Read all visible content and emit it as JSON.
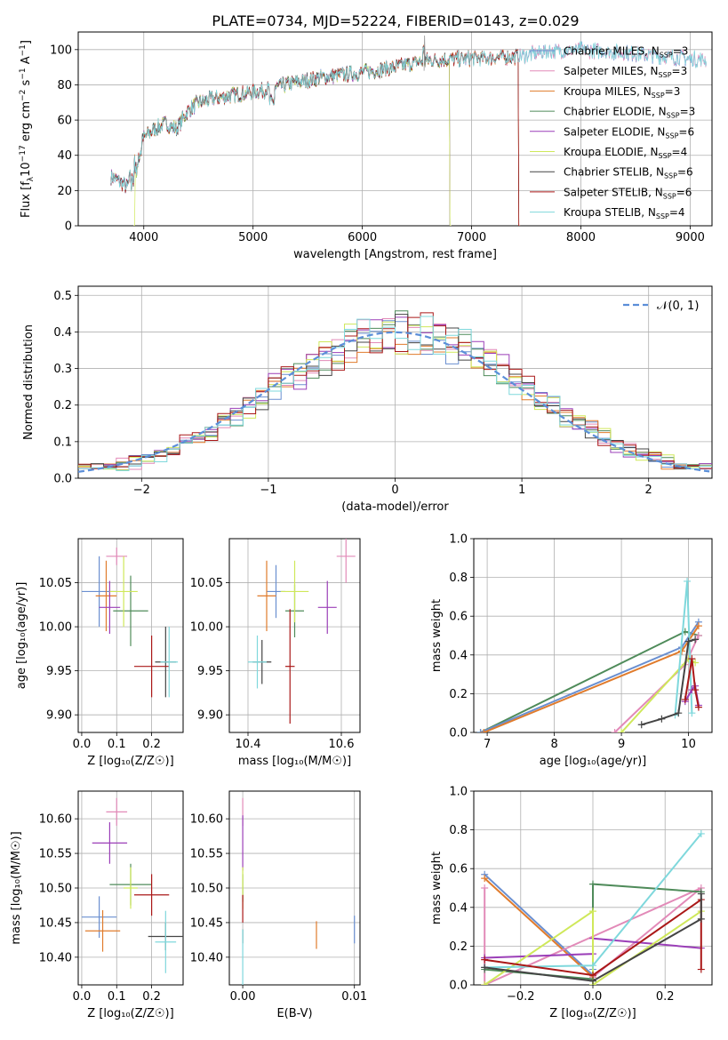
{
  "figure_title": "PLATE=0734, MJD=52224, FIBERID=0143, z=0.029",
  "colors": {
    "ChM": "#6a8fd0",
    "SaM": "#e28ab8",
    "KrM": "#e07b2c",
    "ChE": "#4f8b5a",
    "SaE": "#9b3fb8",
    "KrE": "#cfe85a",
    "ChS": "#444444",
    "SaS": "#aa1818",
    "KrS": "#7fd8dc"
  },
  "chart_data": [
    {
      "id": "spectrum",
      "type": "line",
      "xlabel": "wavelength [Angstrom, rest frame]",
      "ylabel_pre": "Flux [f",
      "ylabel_sub1": "λ",
      "ylabel_mid": "10",
      "ylabel_sup1": "−17",
      "ylabel_post": " erg cm",
      "ylabel_sup2": "−2",
      "ylabel_mid2": " s",
      "ylabel_sup3": "−1",
      "ylabel_end": " A",
      "ylabel_sup4": "−1",
      "ylabel_close": "]",
      "xlim": [
        3400,
        9200
      ],
      "ylim": [
        0,
        110
      ],
      "xticks": [
        4000,
        5000,
        6000,
        7000,
        8000,
        9000
      ],
      "yticks": [
        0,
        20,
        40,
        60,
        80,
        100
      ],
      "spectrum_anchor": [
        [
          3700,
          28
        ],
        [
          3780,
          25
        ],
        [
          3850,
          22
        ],
        [
          3920,
          38
        ],
        [
          4000,
          50
        ],
        [
          4100,
          55
        ],
        [
          4200,
          58
        ],
        [
          4300,
          55
        ],
        [
          4400,
          65
        ],
        [
          4500,
          70
        ],
        [
          4700,
          73
        ],
        [
          4900,
          75
        ],
        [
          5100,
          77
        ],
        [
          5300,
          80
        ],
        [
          5600,
          84
        ],
        [
          6000,
          87
        ],
        [
          6300,
          90
        ],
        [
          6600,
          94
        ],
        [
          7000,
          95
        ],
        [
          7400,
          96
        ],
        [
          7700,
          99
        ],
        [
          8000,
          100
        ],
        [
          8400,
          98
        ],
        [
          8800,
          96
        ],
        [
          9150,
          94
        ]
      ],
      "series": [
        {
          "key": "ChM",
          "name": "Chabrier MILES",
          "nssp": "3",
          "end": 9150,
          "start": 3700
        },
        {
          "key": "SaM",
          "name": "Salpeter MILES",
          "nssp": "3",
          "end": 9150,
          "start": 3700
        },
        {
          "key": "KrM",
          "name": "Kroupa MILES",
          "nssp": "3",
          "end": 7430,
          "start": 3700
        },
        {
          "key": "ChE",
          "name": "Chabrier ELODIE",
          "nssp": "3",
          "end": 6800,
          "start": 3700
        },
        {
          "key": "SaE",
          "name": "Salpeter ELODIE",
          "nssp": "6",
          "end": 6800,
          "start": 3700
        },
        {
          "key": "KrE",
          "name": "Kroupa ELODIE",
          "nssp": "4",
          "end": 6800,
          "start": 3900
        },
        {
          "key": "ChS",
          "name": "Chabrier STELIB",
          "nssp": "6",
          "end": 7430,
          "start": 3700
        },
        {
          "key": "SaS",
          "name": "Salpeter STELIB",
          "nssp": "6",
          "end": 7430,
          "start": 3700
        },
        {
          "key": "KrS",
          "name": "Kroupa STELIB",
          "nssp": "4",
          "end": 9150,
          "start": 3700
        }
      ],
      "legend_sub": "SSP",
      "legend_placement": "right"
    },
    {
      "id": "residuals",
      "type": "histogram",
      "xlabel": "(data-model)/error",
      "ylabel": "Normed distribution",
      "xlim": [
        -2.5,
        2.5
      ],
      "ylim": [
        0,
        0.525
      ],
      "xticks": [
        -2,
        -1,
        0,
        1,
        2
      ],
      "yticks": [
        0.0,
        0.1,
        0.2,
        0.3,
        0.4,
        0.5
      ],
      "bin_width": 0.1,
      "legend_label": "𝒩(0, 1)",
      "legend_placement": "top-right"
    },
    {
      "id": "age_vs_Z",
      "type": "errorbar",
      "xlabel": "Z [log₁₀(Z/Z☉)]",
      "ylabel": "age  [log₁₀(age/yr)]",
      "xlim": [
        -0.01,
        0.29
      ],
      "ylim": [
        9.88,
        10.1
      ],
      "xticks": [
        0.0,
        0.1,
        0.2
      ],
      "yticks": [
        9.9,
        9.95,
        10.0,
        10.05
      ],
      "points": [
        {
          "key": "ChM",
          "x": 0.05,
          "y": 10.04,
          "xe": 0.05,
          "ye": 0.04
        },
        {
          "key": "SaM",
          "x": 0.1,
          "y": 10.08,
          "xe": 0.03,
          "ye": 0.01
        },
        {
          "key": "KrM",
          "x": 0.07,
          "y": 10.035,
          "xe": 0.03,
          "ye": 0.04
        },
        {
          "key": "ChE",
          "x": 0.14,
          "y": 10.018,
          "xe": 0.05,
          "ye": 0.04
        },
        {
          "key": "SaE",
          "x": 0.08,
          "y": 10.022,
          "xe": 0.03,
          "ye": 0.03
        },
        {
          "key": "KrE",
          "x": 0.12,
          "y": 10.04,
          "xe": 0.04,
          "ye": 0.04
        },
        {
          "key": "ChS",
          "x": 0.24,
          "y": 9.96,
          "xe": 0.03,
          "ye": 0.04
        },
        {
          "key": "SaS",
          "x": 0.2,
          "y": 9.955,
          "xe": 0.05,
          "ye": 0.035
        },
        {
          "key": "KrS",
          "x": 0.25,
          "y": 9.96,
          "xe": 0.025,
          "ye": 0.04
        }
      ]
    },
    {
      "id": "age_vs_mass",
      "type": "errorbar",
      "xlabel": "mass [log₁₀(M/M☉)]",
      "ylabel": "",
      "xlim": [
        10.36,
        10.64
      ],
      "ylim": [
        9.88,
        10.1
      ],
      "xticks": [
        10.4,
        10.6
      ],
      "yticks": [
        9.9,
        9.95,
        10.0,
        10.05
      ],
      "points": [
        {
          "key": "ChM",
          "x": 10.46,
          "y": 10.04,
          "xe": 0.02,
          "ye": 0.03
        },
        {
          "key": "SaM",
          "x": 10.61,
          "y": 10.08,
          "xe": 0.02,
          "ye": 0.03
        },
        {
          "key": "KrM",
          "x": 10.44,
          "y": 10.035,
          "xe": 0.02,
          "ye": 0.04
        },
        {
          "key": "ChE",
          "x": 10.5,
          "y": 10.018,
          "xe": 0.02,
          "ye": 0.03
        },
        {
          "key": "SaE",
          "x": 10.57,
          "y": 10.022,
          "xe": 0.02,
          "ye": 0.03
        },
        {
          "key": "KrE",
          "x": 10.5,
          "y": 10.04,
          "xe": 0.03,
          "ye": 0.035
        },
        {
          "key": "ChS",
          "x": 10.43,
          "y": 9.96,
          "xe": 0.02,
          "ye": 0.025
        },
        {
          "key": "SaS",
          "x": 10.49,
          "y": 9.955,
          "xe": 0.01,
          "ye": 0.065
        },
        {
          "key": "KrS",
          "x": 10.42,
          "y": 9.96,
          "xe": 0.02,
          "ye": 0.03
        }
      ]
    },
    {
      "id": "weight_vs_age",
      "type": "line",
      "xlabel": "age  [log₁₀(age/yr)]",
      "ylabel": "mass weight",
      "xlim": [
        6.8,
        10.35
      ],
      "ylim": [
        0,
        1
      ],
      "xticks": [
        7,
        8,
        9,
        10
      ],
      "yticks": [
        0.0,
        0.2,
        0.4,
        0.6,
        0.8,
        1.0
      ],
      "lines": [
        {
          "key": "ChE",
          "pts": [
            [
              6.9,
              0.0
            ],
            [
              9.95,
              0.52
            ],
            [
              10.15,
              0.5
            ]
          ]
        },
        {
          "key": "ChM",
          "pts": [
            [
              6.9,
              0.0
            ],
            [
              9.9,
              0.44
            ],
            [
              10.15,
              0.57
            ]
          ]
        },
        {
          "key": "KrM",
          "pts": [
            [
              6.95,
              0.0
            ],
            [
              9.9,
              0.42
            ],
            [
              10.15,
              0.55
            ]
          ]
        },
        {
          "key": "SaM",
          "pts": [
            [
              8.9,
              0.0
            ],
            [
              9.95,
              0.35
            ],
            [
              10.15,
              0.5
            ]
          ]
        },
        {
          "key": "KrE",
          "pts": [
            [
              9.0,
              0.0
            ],
            [
              10.0,
              0.38
            ],
            [
              10.1,
              0.36
            ]
          ]
        },
        {
          "key": "KrS",
          "pts": [
            [
              9.8,
              0.09
            ],
            [
              9.98,
              0.78
            ],
            [
              10.05,
              0.1
            ]
          ]
        },
        {
          "key": "SaE",
          "pts": [
            [
              9.95,
              0.16
            ],
            [
              10.05,
              0.22
            ],
            [
              10.1,
              0.24
            ],
            [
              10.15,
              0.14
            ]
          ]
        },
        {
          "key": "SaS",
          "pts": [
            [
              9.95,
              0.17
            ],
            [
              10.05,
              0.38
            ],
            [
              10.1,
              0.22
            ],
            [
              10.15,
              0.13
            ]
          ]
        },
        {
          "key": "ChS",
          "pts": [
            [
              9.3,
              0.04
            ],
            [
              9.6,
              0.07
            ],
            [
              9.85,
              0.1
            ],
            [
              10.0,
              0.47
            ],
            [
              10.1,
              0.48
            ]
          ]
        }
      ]
    },
    {
      "id": "mass_vs_Z",
      "type": "errorbar",
      "xlabel": "Z [log₁₀(Z/Z☉)]",
      "ylabel": "mass [log₁₀(M/M☉)]",
      "xlim": [
        -0.01,
        0.29
      ],
      "ylim": [
        10.36,
        10.64
      ],
      "xticks": [
        0.0,
        0.1,
        0.2
      ],
      "yticks": [
        10.4,
        10.45,
        10.5,
        10.55,
        10.6
      ],
      "points": [
        {
          "key": "ChM",
          "x": 0.05,
          "y": 10.458,
          "xe": 0.05,
          "ye": 0.03
        },
        {
          "key": "SaM",
          "x": 0.1,
          "y": 10.61,
          "xe": 0.03,
          "ye": 0.02
        },
        {
          "key": "KrM",
          "x": 0.06,
          "y": 10.438,
          "xe": 0.05,
          "ye": 0.03
        },
        {
          "key": "ChE",
          "x": 0.14,
          "y": 10.505,
          "xe": 0.06,
          "ye": 0.03
        },
        {
          "key": "SaE",
          "x": 0.08,
          "y": 10.565,
          "xe": 0.05,
          "ye": 0.03
        },
        {
          "key": "KrE",
          "x": 0.14,
          "y": 10.5,
          "xe": 0.02,
          "ye": 0.03
        },
        {
          "key": "ChS",
          "x": 0.24,
          "y": 10.43,
          "xe": 0.05,
          "ye": 0.02
        },
        {
          "key": "SaS",
          "x": 0.2,
          "y": 10.49,
          "xe": 0.05,
          "ye": 0.03
        },
        {
          "key": "KrS",
          "x": 0.24,
          "y": 10.422,
          "xe": 0.03,
          "ye": 0.045
        }
      ]
    },
    {
      "id": "mass_vs_ebv",
      "type": "errorbar",
      "xlabel": "E(B-V)",
      "ylabel": "",
      "xlim": [
        -0.0012,
        0.0105
      ],
      "ylim": [
        10.36,
        10.64
      ],
      "xticks": [
        0.0,
        0.01
      ],
      "yticks": [
        10.4,
        10.45,
        10.5,
        10.55,
        10.6
      ],
      "points": [
        {
          "key": "ChM",
          "x": 0.01,
          "y": 10.44,
          "xe": 0,
          "ye": 0.02
        },
        {
          "key": "SaM",
          "x": 0.0,
          "y": 10.61,
          "xe": 0,
          "ye": 0.02
        },
        {
          "key": "KrM",
          "x": 0.0066,
          "y": 10.432,
          "xe": 0,
          "ye": 0.02
        },
        {
          "key": "ChE",
          "x": 0.0,
          "y": 10.5,
          "xe": 0,
          "ye": 0.02
        },
        {
          "key": "SaE",
          "x": 0.0,
          "y": 10.565,
          "xe": 0,
          "ye": 0.04
        },
        {
          "key": "KrE",
          "x": 0.0,
          "y": 10.5,
          "xe": 0,
          "ye": 0.03
        },
        {
          "key": "ChS",
          "x": 0.0,
          "y": 10.43,
          "xe": 0,
          "ye": 0.01
        },
        {
          "key": "SaS",
          "x": 0.0,
          "y": 10.47,
          "xe": 0,
          "ye": 0.02
        },
        {
          "key": "KrS",
          "x": 0.0,
          "y": 10.4,
          "xe": 0,
          "ye": 0.04
        }
      ]
    },
    {
      "id": "weight_vs_Z",
      "type": "line",
      "xlabel": "Z [log₁₀(Z/Z☉)]",
      "ylabel": "mass weight",
      "xlim": [
        -0.33,
        0.33
      ],
      "ylim": [
        0,
        1
      ],
      "xticks": [
        -0.2,
        0.0,
        0.2
      ],
      "yticks": [
        0.0,
        0.2,
        0.4,
        0.6,
        0.8,
        1.0
      ],
      "lines": [
        {
          "key": "ChM",
          "pts": [
            [
              -0.3,
              0.57
            ],
            [
              0.0,
              0.05
            ],
            [
              0.0,
              0.08
            ]
          ]
        },
        {
          "key": "KrM",
          "pts": [
            [
              -0.3,
              0.55
            ],
            [
              0.0,
              0.04
            ]
          ]
        },
        {
          "key": "SaM",
          "pts": [
            [
              -0.3,
              0.5
            ],
            [
              -0.3,
              0.0
            ],
            [
              0.3,
              0.5
            ],
            [
              0.0,
              0.04
            ]
          ]
        },
        {
          "key": "ChE",
          "pts": [
            [
              -0.3,
              0.08
            ],
            [
              0.0,
              0.03
            ],
            [
              0.0,
              0.52
            ],
            [
              0.3,
              0.48
            ]
          ]
        },
        {
          "key": "SaE",
          "pts": [
            [
              -0.3,
              0.14
            ],
            [
              0.0,
              0.16
            ],
            [
              0.0,
              0.24
            ],
            [
              0.3,
              0.19
            ]
          ]
        },
        {
          "key": "KrE",
          "pts": [
            [
              -0.3,
              0.0
            ],
            [
              0.0,
              0.38
            ],
            [
              0.0,
              0.0
            ],
            [
              0.3,
              0.38
            ]
          ]
        },
        {
          "key": "KrS",
          "pts": [
            [
              -0.3,
              0.09
            ],
            [
              0.0,
              0.1
            ],
            [
              0.3,
              0.78
            ]
          ]
        },
        {
          "key": "SaS",
          "pts": [
            [
              -0.3,
              0.13
            ],
            [
              0.0,
              0.05
            ],
            [
              0.3,
              0.44
            ],
            [
              0.3,
              0.08
            ]
          ]
        },
        {
          "key": "ChS",
          "pts": [
            [
              -0.3,
              0.09
            ],
            [
              0.0,
              0.02
            ],
            [
              0.3,
              0.34
            ],
            [
              0.3,
              0.47
            ]
          ]
        }
      ]
    }
  ]
}
